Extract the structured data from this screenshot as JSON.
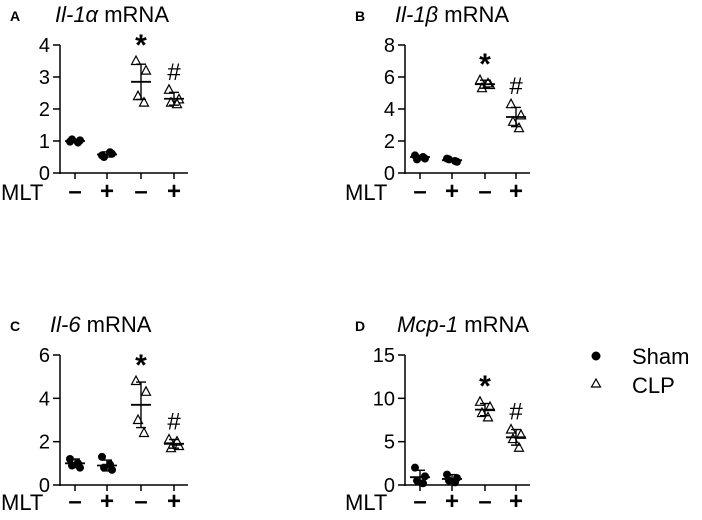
{
  "chart_data": [
    {
      "type": "scatter",
      "panel": "A",
      "title_italic": "Il-1α",
      "title_rest": " mRNA",
      "ylim": [
        0,
        4
      ],
      "yticks": [
        "0",
        "1",
        "2",
        "3",
        "4"
      ],
      "x_row_label": "MLT",
      "x_signs": [
        "–",
        "+",
        "–",
        "+"
      ],
      "groups": [
        {
          "series": "Sham",
          "points": [
            0.98,
            1.02,
            1.05,
            0.95
          ],
          "mean": 1.0,
          "sd": 0.05
        },
        {
          "series": "Sham",
          "points": [
            0.55,
            0.6,
            0.5,
            0.65
          ],
          "mean": 0.58,
          "sd": 0.08
        },
        {
          "series": "CLP",
          "points": [
            3.5,
            3.2,
            2.4,
            2.2
          ],
          "mean": 2.85,
          "sd": 0.55
        },
        {
          "series": "CLP",
          "points": [
            2.6,
            2.3,
            2.2,
            2.15
          ],
          "mean": 2.32,
          "sd": 0.2
        }
      ],
      "annotations": [
        {
          "group": 2,
          "text": "*"
        },
        {
          "group": 3,
          "text": "#"
        }
      ]
    },
    {
      "type": "scatter",
      "panel": "B",
      "title_italic": "Il-1β",
      "title_rest": " mRNA",
      "ylim": [
        0,
        8
      ],
      "yticks": [
        "0",
        "2",
        "4",
        "6",
        "8"
      ],
      "x_row_label": "MLT",
      "x_signs": [
        "–",
        "+",
        "–",
        "+"
      ],
      "groups": [
        {
          "series": "Sham",
          "points": [
            1.1,
            0.9,
            0.85,
            1.0
          ],
          "mean": 1.0,
          "sd": 0.1
        },
        {
          "series": "Sham",
          "points": [
            0.9,
            0.7,
            0.85,
            0.75
          ],
          "mean": 0.8,
          "sd": 0.1
        },
        {
          "series": "CLP",
          "points": [
            5.8,
            5.5,
            5.3,
            5.6
          ],
          "mean": 5.55,
          "sd": 0.25
        },
        {
          "series": "CLP",
          "points": [
            4.3,
            3.6,
            3.2,
            2.8
          ],
          "mean": 3.5,
          "sd": 0.6
        }
      ],
      "annotations": [
        {
          "group": 2,
          "text": "*"
        },
        {
          "group": 3,
          "text": "#"
        }
      ]
    },
    {
      "type": "scatter",
      "panel": "C",
      "title_italic": "Il-6",
      "title_rest": " mRNA",
      "ylim": [
        0,
        6
      ],
      "yticks": [
        "0",
        "2",
        "4",
        "6"
      ],
      "x_row_label": "MLT",
      "x_signs": [
        "–",
        "+",
        "–",
        "+"
      ],
      "groups": [
        {
          "series": "Sham",
          "points": [
            1.2,
            0.8,
            0.9,
            1.0
          ],
          "mean": 1.0,
          "sd": 0.2
        },
        {
          "series": "Sham",
          "points": [
            1.3,
            0.7,
            0.8,
            0.95
          ],
          "mean": 0.9,
          "sd": 0.25
        },
        {
          "series": "CLP",
          "points": [
            4.8,
            4.3,
            3.0,
            2.4
          ],
          "mean": 3.7,
          "sd": 1.05
        },
        {
          "series": "CLP",
          "points": [
            2.1,
            1.8,
            1.7,
            2.0
          ],
          "mean": 1.9,
          "sd": 0.2
        }
      ],
      "annotations": [
        {
          "group": 2,
          "text": "*"
        },
        {
          "group": 3,
          "text": "#"
        }
      ]
    },
    {
      "type": "scatter",
      "panel": "D",
      "title_italic": "Mcp-1",
      "title_rest": " mRNA",
      "ylim": [
        0,
        15
      ],
      "yticks": [
        "0",
        "5",
        "10",
        "15"
      ],
      "x_row_label": "MLT",
      "x_signs": [
        "–",
        "+",
        "–",
        "+"
      ],
      "groups": [
        {
          "series": "Sham",
          "points": [
            2.0,
            1.0,
            0.5,
            0.2
          ],
          "mean": 0.9,
          "sd": 0.8
        },
        {
          "series": "Sham",
          "points": [
            1.2,
            0.8,
            0.5,
            0.3
          ],
          "mean": 0.7,
          "sd": 0.5
        },
        {
          "series": "CLP",
          "points": [
            9.6,
            9.0,
            8.3,
            7.8
          ],
          "mean": 8.7,
          "sd": 0.7
        },
        {
          "series": "CLP",
          "points": [
            6.4,
            5.8,
            5.3,
            4.3
          ],
          "mean": 5.5,
          "sd": 0.9
        }
      ],
      "annotations": [
        {
          "group": 2,
          "text": "*"
        },
        {
          "group": 3,
          "text": "#"
        }
      ]
    }
  ],
  "legend": {
    "items": [
      {
        "symbol": "filled-circle",
        "label": "Sham"
      },
      {
        "symbol": "open-triangle",
        "label": "CLP"
      }
    ]
  }
}
